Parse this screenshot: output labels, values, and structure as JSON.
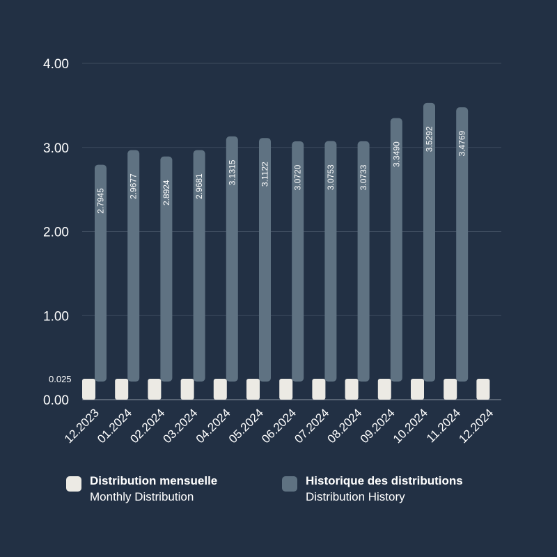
{
  "colors": {
    "background": "#223044",
    "monthly": "#eceae4",
    "history": "#5f7282",
    "grid": "#3d4b5e",
    "text": "#ffffff"
  },
  "chart_data": {
    "type": "bar",
    "categories": [
      "12.2023",
      "01.2024",
      "02.2024",
      "03.2024",
      "04.2024",
      "05.2024",
      "06.2024",
      "07.2024",
      "08.2024",
      "09.2024",
      "10.2024",
      "11.2024",
      "12.2024"
    ],
    "series": [
      {
        "name": "Distribution mensuelle",
        "values": [
          0.025,
          0.025,
          0.025,
          0.025,
          0.025,
          0.025,
          0.025,
          0.025,
          0.025,
          0.025,
          0.025,
          0.025,
          0.025
        ]
      },
      {
        "name": "Historique des distributions",
        "values": [
          2.7945,
          2.9677,
          2.8924,
          2.9681,
          3.1315,
          3.1122,
          3.072,
          3.0753,
          3.0733,
          3.349,
          3.5292,
          3.4769,
          null
        ],
        "labels": [
          "2.7945",
          "2.9677",
          "2.8924",
          "2.9681",
          "3.1315",
          "3.1122",
          "3.0720",
          "3.0753",
          "3.0733",
          "3.3490",
          "3.5292",
          "3.4769",
          ""
        ]
      }
    ],
    "yticks": [
      0,
      1,
      2,
      3,
      4
    ],
    "ytick_labels": [
      "0.00",
      "1.00",
      "2.00",
      "3.00",
      "4.00"
    ],
    "extra_ytick": {
      "value": 0.025,
      "label": "0.025"
    },
    "ylim": [
      0,
      4
    ],
    "grid": true,
    "legend_position": "bottom"
  },
  "legend": {
    "items": [
      {
        "primary": "Distribution mensuelle",
        "secondary": "Monthly Distribution"
      },
      {
        "primary": "Historique des distributions",
        "secondary": "Distribution History"
      }
    ]
  }
}
